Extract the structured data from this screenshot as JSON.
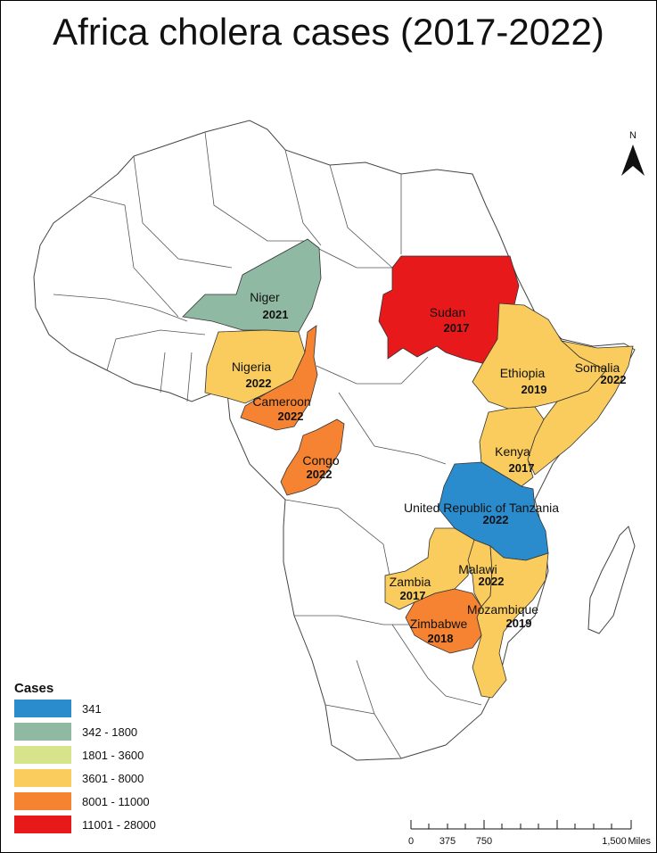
{
  "title": "Africa cholera cases (2017-2022)",
  "north_arrow": {
    "label": "N",
    "icon": "north-arrow-icon"
  },
  "legend": {
    "title": "Cases",
    "items": [
      {
        "label": "341",
        "color": "#2b8ccd"
      },
      {
        "label": "342 - 1800",
        "color": "#8fb9a3"
      },
      {
        "label": "1801 - 3600",
        "color": "#d8e48c"
      },
      {
        "label": "3601 - 8000",
        "color": "#f9cc5d"
      },
      {
        "label": "8001 - 11000",
        "color": "#f58331"
      },
      {
        "label": "11001 - 28000",
        "color": "#e8191b"
      }
    ]
  },
  "countries": [
    {
      "name": "Niger",
      "year": "2021"
    },
    {
      "name": "Sudan",
      "year": "2017"
    },
    {
      "name": "Nigeria",
      "year": "2022"
    },
    {
      "name": "Ethiopia",
      "year": "2019"
    },
    {
      "name": "Somalia",
      "year": "2022"
    },
    {
      "name": "Cameroon",
      "year": "2022"
    },
    {
      "name": "Congo",
      "year": "2022"
    },
    {
      "name": "Kenya",
      "year": "2017"
    },
    {
      "name": "United Republic of Tanzania",
      "year": "2022"
    },
    {
      "name": "Zambia",
      "year": "2017"
    },
    {
      "name": "Malawi",
      "year": "2022"
    },
    {
      "name": "Mozambique",
      "year": "2019"
    },
    {
      "name": "Zimbabwe",
      "year": "2018"
    }
  ],
  "scale_bar": {
    "ticks": [
      "0",
      "375",
      "750",
      "1,500"
    ],
    "unit": "Miles"
  }
}
